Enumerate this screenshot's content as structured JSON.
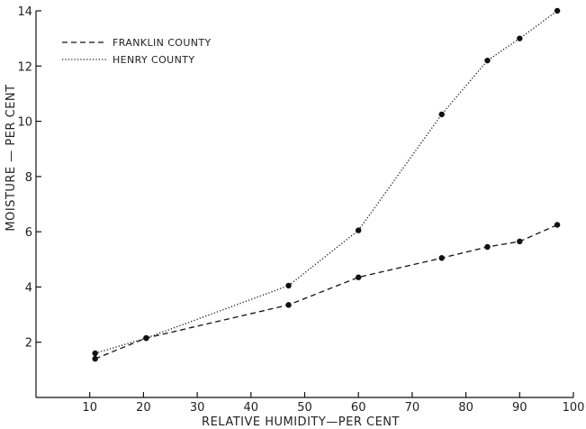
{
  "chart_data": {
    "type": "line",
    "title": "",
    "xlabel": "RELATIVE HUMIDITY—PER CENT",
    "ylabel": "MOISTURE — PER CENT",
    "xlim": [
      0,
      100
    ],
    "ylim": [
      0,
      14
    ],
    "x_ticks": [
      "10",
      "20",
      "30",
      "40",
      "50",
      "60",
      "70",
      "80",
      "90",
      "100"
    ],
    "y_ticks": [
      "2",
      "4",
      "6",
      "8",
      "10",
      "12",
      "14"
    ],
    "grid": false,
    "legend_position": "top-left",
    "series": [
      {
        "name": "FRANKLIN COUNTY",
        "line_style": "dashed",
        "color": "#111111",
        "x": [
          11,
          20.5,
          47,
          60,
          75.5,
          84,
          90,
          97
        ],
        "y": [
          1.4,
          2.15,
          3.35,
          4.35,
          5.05,
          5.45,
          5.65,
          6.25
        ]
      },
      {
        "name": "HENRY COUNTY",
        "line_style": "dotted",
        "color": "#111111",
        "x": [
          11,
          20.5,
          47,
          60,
          75.5,
          84,
          90,
          97
        ],
        "y": [
          1.6,
          2.15,
          4.05,
          6.05,
          10.25,
          12.2,
          13,
          14
        ]
      }
    ]
  }
}
